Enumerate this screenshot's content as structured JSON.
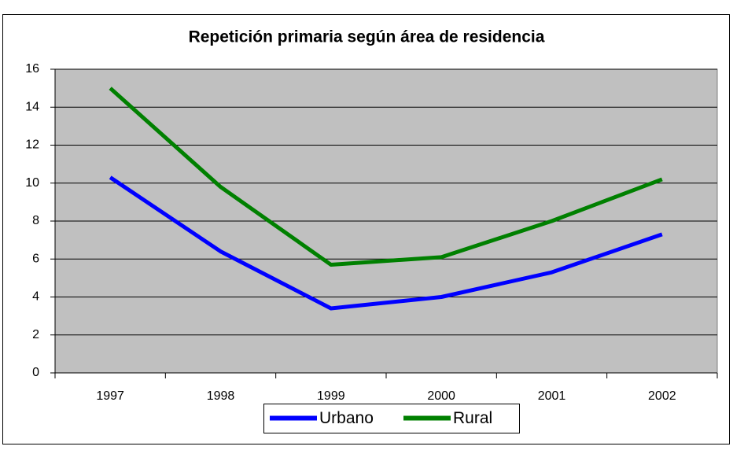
{
  "chart_data": {
    "type": "line",
    "title": "Repetición primaria según área de residencia",
    "categories": [
      "1997",
      "1998",
      "1999",
      "2000",
      "2001",
      "2002"
    ],
    "series": [
      {
        "name": "Urbano",
        "color": "#0000ff",
        "values": [
          10.3,
          6.4,
          3.4,
          4.0,
          5.3,
          7.3
        ]
      },
      {
        "name": "Rural",
        "color": "#008000",
        "values": [
          15.0,
          9.8,
          5.7,
          6.1,
          8.0,
          10.2
        ]
      }
    ],
    "ylim": [
      0,
      16
    ],
    "yticks": [
      0,
      2,
      4,
      6,
      8,
      10,
      12,
      14,
      16
    ],
    "grid": true,
    "legend": "bottom"
  }
}
